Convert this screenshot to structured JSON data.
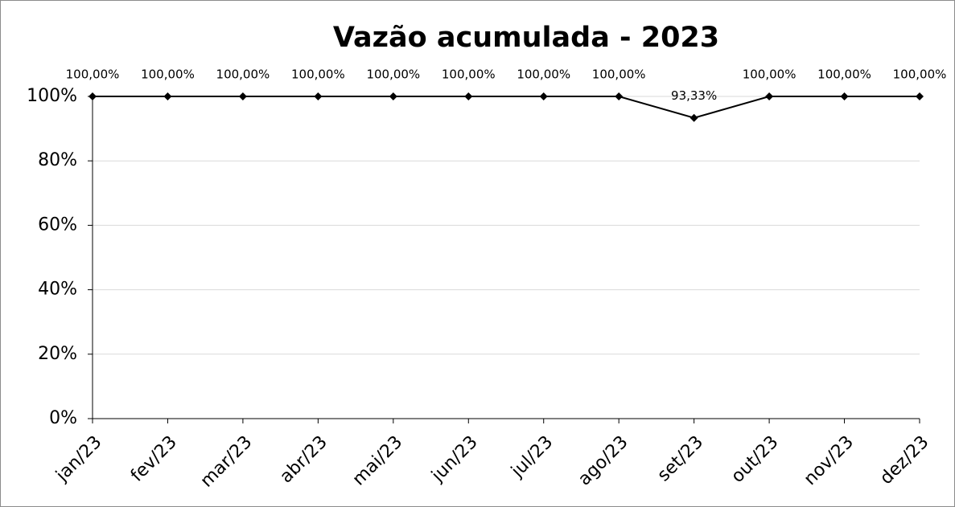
{
  "chart_data": {
    "type": "line",
    "title": "Vazão acumulada - 2023",
    "categories": [
      "jan/23",
      "fev/23",
      "mar/23",
      "abr/23",
      "mai/23",
      "jun/23",
      "jul/23",
      "ago/23",
      "set/23",
      "out/23",
      "nov/23",
      "dez/23"
    ],
    "values": [
      100,
      100,
      100,
      100,
      100,
      100,
      100,
      100,
      93.33,
      100,
      100,
      100
    ],
    "value_labels": [
      "100,00%",
      "100,00%",
      "100,00%",
      "100,00%",
      "100,00%",
      "100,00%",
      "100,00%",
      "100,00%",
      "93,33%",
      "100,00%",
      "100,00%",
      "100,00%"
    ],
    "color": "#000000",
    "ylim": [
      0,
      100
    ],
    "yticks": [
      {
        "value": 0,
        "label": "0%"
      },
      {
        "value": 20,
        "label": "20%"
      },
      {
        "value": 40,
        "label": "40%"
      },
      {
        "value": 60,
        "label": "60%"
      },
      {
        "value": 80,
        "label": "80%"
      },
      {
        "value": 100,
        "label": "100%"
      }
    ],
    "grid": true
  }
}
